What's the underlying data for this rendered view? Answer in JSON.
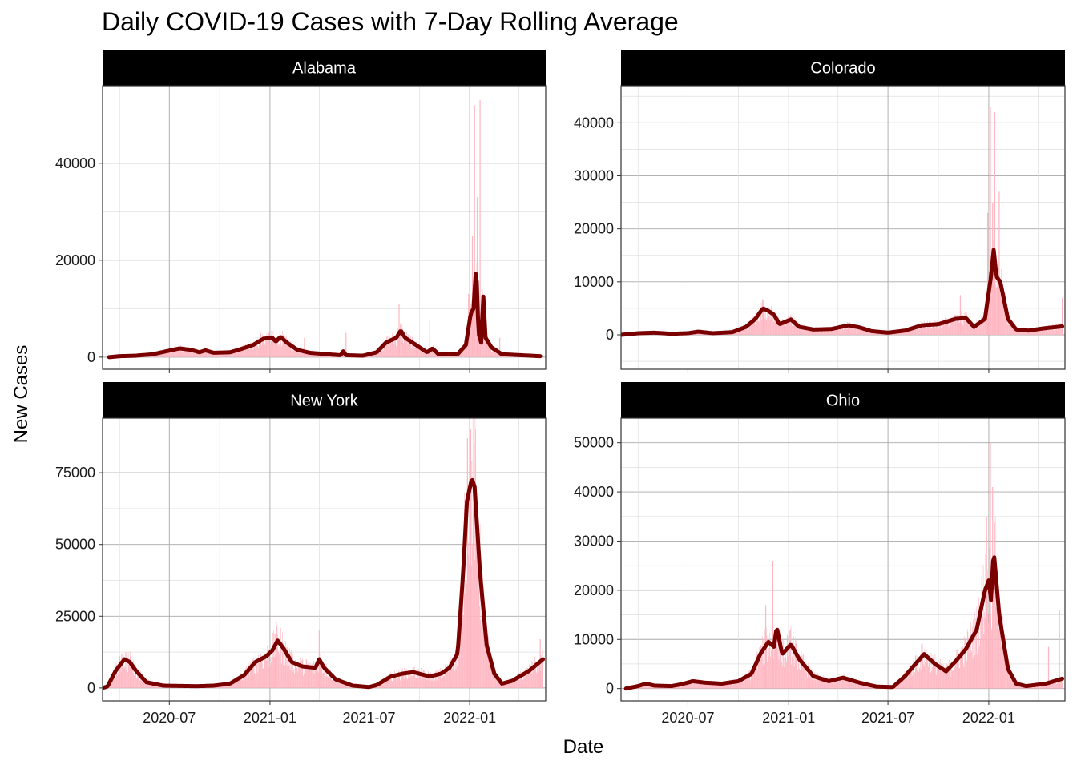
{
  "chart_data": {
    "type": "bar+line",
    "title": "Daily COVID-19 Cases with 7-Day Rolling Average",
    "xlabel": "Date",
    "ylabel": "New Cases",
    "x_range": [
      "2020-03-01",
      "2022-05-20"
    ],
    "x_ticks": [
      "2020-07-01",
      "2021-01-01",
      "2021-07-01",
      "2022-01-01"
    ],
    "x_tick_labels": [
      "2020-07",
      "2021-01",
      "2021-07",
      "2022-01"
    ],
    "colors": {
      "bars": "#ffb6c1",
      "line": "#7a0000",
      "strip": "#000000",
      "grid": "#b3b3b3"
    },
    "grid": true,
    "panels": [
      {
        "name": "Alabama",
        "ylim": [
          -2500,
          56000
        ],
        "y_ticks": [
          0,
          20000,
          40000
        ],
        "rolling_average": [
          [
            "2020-03-13",
            0
          ],
          [
            "2020-04-01",
            200
          ],
          [
            "2020-05-01",
            300
          ],
          [
            "2020-06-01",
            600
          ],
          [
            "2020-06-25",
            1200
          ],
          [
            "2020-07-20",
            1800
          ],
          [
            "2020-08-10",
            1500
          ],
          [
            "2020-08-25",
            1000
          ],
          [
            "2020-09-05",
            1400
          ],
          [
            "2020-09-20",
            900
          ],
          [
            "2020-10-20",
            1000
          ],
          [
            "2020-11-10",
            1700
          ],
          [
            "2020-12-01",
            2500
          ],
          [
            "2020-12-20",
            3800
          ],
          [
            "2021-01-05",
            4000
          ],
          [
            "2021-01-12",
            3200
          ],
          [
            "2021-01-20",
            4200
          ],
          [
            "2021-02-01",
            3000
          ],
          [
            "2021-02-20",
            1500
          ],
          [
            "2021-03-15",
            900
          ],
          [
            "2021-04-15",
            600
          ],
          [
            "2021-05-10",
            400
          ],
          [
            "2021-05-15",
            1200
          ],
          [
            "2021-05-20",
            400
          ],
          [
            "2021-06-20",
            300
          ],
          [
            "2021-07-15",
            1000
          ],
          [
            "2021-08-01",
            3000
          ],
          [
            "2021-08-20",
            4000
          ],
          [
            "2021-08-28",
            5500
          ],
          [
            "2021-09-05",
            4000
          ],
          [
            "2021-09-25",
            2500
          ],
          [
            "2021-10-15",
            1000
          ],
          [
            "2021-10-25",
            1800
          ],
          [
            "2021-11-05",
            600
          ],
          [
            "2021-12-10",
            600
          ],
          [
            "2021-12-25",
            2500
          ],
          [
            "2022-01-03",
            9000
          ],
          [
            "2022-01-08",
            10000
          ],
          [
            "2022-01-13",
            19000
          ],
          [
            "2022-01-17",
            5000
          ],
          [
            "2022-01-22",
            3000
          ],
          [
            "2022-01-26",
            12500
          ],
          [
            "2022-01-30",
            4000
          ],
          [
            "2022-02-10",
            2000
          ],
          [
            "2022-03-01",
            600
          ],
          [
            "2022-05-10",
            200
          ]
        ],
        "daily_peaks": [
          [
            "2020-12-15",
            5000
          ],
          [
            "2021-03-05",
            4000
          ],
          [
            "2021-05-20",
            5000
          ],
          [
            "2021-08-25",
            11000
          ],
          [
            "2021-10-20",
            7500
          ],
          [
            "2021-12-30",
            13000
          ],
          [
            "2022-01-06",
            25000
          ],
          [
            "2022-01-10",
            52000
          ],
          [
            "2022-01-15",
            33000
          ],
          [
            "2022-01-20",
            53000
          ],
          [
            "2022-01-24",
            14000
          ],
          [
            "2022-02-25",
            4000
          ]
        ]
      },
      {
        "name": "Colorado",
        "ylim": [
          -6500,
          47000
        ],
        "y_ticks": [
          0,
          10000,
          20000,
          30000,
          40000
        ],
        "rolling_average": [
          [
            "2020-03-01",
            0
          ],
          [
            "2020-04-01",
            300
          ],
          [
            "2020-05-01",
            400
          ],
          [
            "2020-06-01",
            200
          ],
          [
            "2020-07-01",
            300
          ],
          [
            "2020-07-20",
            600
          ],
          [
            "2020-08-15",
            300
          ],
          [
            "2020-09-20",
            500
          ],
          [
            "2020-10-15",
            1500
          ],
          [
            "2020-11-01",
            3000
          ],
          [
            "2020-11-15",
            5000
          ],
          [
            "2020-11-25",
            4500
          ],
          [
            "2020-12-05",
            3800
          ],
          [
            "2020-12-15",
            2000
          ],
          [
            "2021-01-05",
            2900
          ],
          [
            "2021-01-20",
            1500
          ],
          [
            "2021-02-15",
            1000
          ],
          [
            "2021-03-20",
            1100
          ],
          [
            "2021-04-20",
            1800
          ],
          [
            "2021-05-10",
            1400
          ],
          [
            "2021-06-01",
            700
          ],
          [
            "2021-07-01",
            400
          ],
          [
            "2021-08-01",
            800
          ],
          [
            "2021-09-01",
            1800
          ],
          [
            "2021-10-01",
            2000
          ],
          [
            "2021-11-01",
            3000
          ],
          [
            "2021-11-20",
            3200
          ],
          [
            "2021-12-05",
            1500
          ],
          [
            "2021-12-25",
            3000
          ],
          [
            "2022-01-05",
            11000
          ],
          [
            "2022-01-10",
            16000
          ],
          [
            "2022-01-15",
            11000
          ],
          [
            "2022-01-22",
            10000
          ],
          [
            "2022-02-05",
            3000
          ],
          [
            "2022-02-20",
            1000
          ],
          [
            "2022-03-15",
            800
          ],
          [
            "2022-04-10",
            1200
          ],
          [
            "2022-05-15",
            1600
          ]
        ],
        "daily_peaks": [
          [
            "2020-11-15",
            6500
          ],
          [
            "2021-11-10",
            7500
          ],
          [
            "2021-12-30",
            23000
          ],
          [
            "2022-01-04",
            43000
          ],
          [
            "2022-01-08",
            25000
          ],
          [
            "2022-01-12",
            42000
          ],
          [
            "2022-01-20",
            27000
          ],
          [
            "2022-05-15",
            7000
          ]
        ]
      },
      {
        "name": "New York",
        "ylim": [
          -4500,
          94000
        ],
        "y_ticks": [
          0,
          25000,
          50000,
          75000
        ],
        "rolling_average": [
          [
            "2020-03-01",
            0
          ],
          [
            "2020-03-10",
            500
          ],
          [
            "2020-03-25",
            6000
          ],
          [
            "2020-04-10",
            10000
          ],
          [
            "2020-04-20",
            9000
          ],
          [
            "2020-05-01",
            6000
          ],
          [
            "2020-05-20",
            2000
          ],
          [
            "2020-06-20",
            800
          ],
          [
            "2020-07-20",
            700
          ],
          [
            "2020-08-20",
            600
          ],
          [
            "2020-09-20",
            800
          ],
          [
            "2020-10-20",
            1500
          ],
          [
            "2020-11-15",
            4500
          ],
          [
            "2020-12-05",
            9000
          ],
          [
            "2020-12-25",
            11000
          ],
          [
            "2021-01-05",
            13000
          ],
          [
            "2021-01-15",
            16500
          ],
          [
            "2021-01-25",
            14000
          ],
          [
            "2021-02-10",
            9000
          ],
          [
            "2021-03-01",
            7500
          ],
          [
            "2021-03-25",
            7000
          ],
          [
            "2021-04-01",
            10000
          ],
          [
            "2021-04-10",
            7000
          ],
          [
            "2021-05-01",
            3000
          ],
          [
            "2021-06-01",
            800
          ],
          [
            "2021-07-01",
            300
          ],
          [
            "2021-07-15",
            1000
          ],
          [
            "2021-08-10",
            4000
          ],
          [
            "2021-09-01",
            5000
          ],
          [
            "2021-09-20",
            5500
          ],
          [
            "2021-10-20",
            4000
          ],
          [
            "2021-11-10",
            5000
          ],
          [
            "2021-11-25",
            7000
          ],
          [
            "2021-12-10",
            12000
          ],
          [
            "2021-12-20",
            40000
          ],
          [
            "2021-12-27",
            65000
          ],
          [
            "2022-01-05",
            73000
          ],
          [
            "2022-01-10",
            70000
          ],
          [
            "2022-01-20",
            40000
          ],
          [
            "2022-02-01",
            15000
          ],
          [
            "2022-02-15",
            5000
          ],
          [
            "2022-03-01",
            1500
          ],
          [
            "2022-03-20",
            2500
          ],
          [
            "2022-04-20",
            6000
          ],
          [
            "2022-05-15",
            10000
          ]
        ],
        "daily_peaks": [
          [
            "2020-04-05",
            12000
          ],
          [
            "2021-01-10",
            19000
          ],
          [
            "2021-04-01",
            20000
          ],
          [
            "2021-12-28",
            87000
          ],
          [
            "2022-01-03",
            90000
          ],
          [
            "2022-01-09",
            85000
          ],
          [
            "2022-05-10",
            17000
          ]
        ]
      },
      {
        "name": "Ohio",
        "ylim": [
          -2500,
          55000
        ],
        "y_ticks": [
          0,
          10000,
          20000,
          30000,
          40000,
          50000
        ],
        "rolling_average": [
          [
            "2020-03-10",
            0
          ],
          [
            "2020-04-01",
            500
          ],
          [
            "2020-04-15",
            1000
          ],
          [
            "2020-05-01",
            600
          ],
          [
            "2020-06-01",
            500
          ],
          [
            "2020-06-20",
            900
          ],
          [
            "2020-07-10",
            1500
          ],
          [
            "2020-08-01",
            1200
          ],
          [
            "2020-09-01",
            1000
          ],
          [
            "2020-10-01",
            1500
          ],
          [
            "2020-10-25",
            3000
          ],
          [
            "2020-11-10",
            7000
          ],
          [
            "2020-11-25",
            9500
          ],
          [
            "2020-12-05",
            8500
          ],
          [
            "2020-12-10",
            12500
          ],
          [
            "2020-12-20",
            7000
          ],
          [
            "2021-01-05",
            9000
          ],
          [
            "2021-01-20",
            6000
          ],
          [
            "2021-02-15",
            2500
          ],
          [
            "2021-03-15",
            1500
          ],
          [
            "2021-04-10",
            2200
          ],
          [
            "2021-05-10",
            1200
          ],
          [
            "2021-06-10",
            400
          ],
          [
            "2021-07-10",
            300
          ],
          [
            "2021-08-01",
            2500
          ],
          [
            "2021-08-20",
            5000
          ],
          [
            "2021-09-05",
            7000
          ],
          [
            "2021-09-25",
            5000
          ],
          [
            "2021-10-15",
            3500
          ],
          [
            "2021-11-01",
            5500
          ],
          [
            "2021-11-20",
            8000
          ],
          [
            "2021-12-10",
            12000
          ],
          [
            "2021-12-25",
            20000
          ],
          [
            "2022-01-01",
            22000
          ],
          [
            "2022-01-05",
            18000
          ],
          [
            "2022-01-10",
            28000
          ],
          [
            "2022-01-20",
            15000
          ],
          [
            "2022-02-05",
            4000
          ],
          [
            "2022-02-20",
            1000
          ],
          [
            "2022-03-10",
            500
          ],
          [
            "2022-04-15",
            1000
          ],
          [
            "2022-05-15",
            2000
          ]
        ],
        "daily_peaks": [
          [
            "2020-11-20",
            17000
          ],
          [
            "2020-12-03",
            26000
          ],
          [
            "2021-12-28",
            35000
          ],
          [
            "2022-01-04",
            50000
          ],
          [
            "2022-01-08",
            41000
          ],
          [
            "2022-04-20",
            8500
          ],
          [
            "2022-05-10",
            16000
          ]
        ]
      }
    ]
  }
}
